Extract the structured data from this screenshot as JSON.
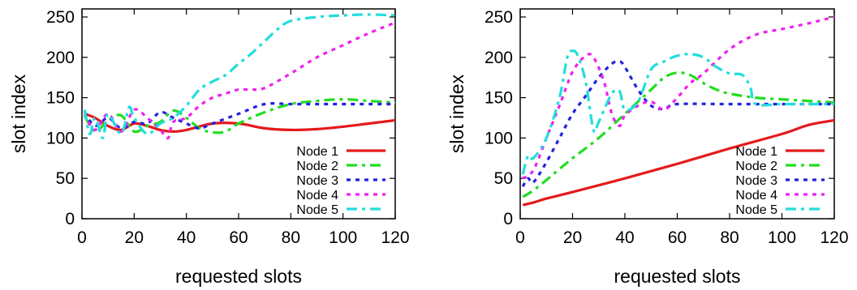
{
  "chart_data": [
    {
      "type": "line",
      "xlabel": "requested slots",
      "ylabel": "slot index",
      "xlim": [
        0,
        120
      ],
      "ylim": [
        0,
        260
      ],
      "xticks": [
        0,
        20,
        40,
        60,
        80,
        100,
        120
      ],
      "yticks": [
        0,
        50,
        100,
        150,
        200,
        250
      ],
      "grid": false,
      "legend_position": "bottom-right",
      "series": [
        {
          "name": "Node 1",
          "color": "#e41a1c",
          "dash": "solid",
          "x": [
            1,
            5,
            10,
            15,
            20,
            25,
            30,
            35,
            40,
            50,
            60,
            70,
            80,
            90,
            100,
            110,
            120
          ],
          "y": [
            130,
            125,
            115,
            110,
            118,
            115,
            110,
            108,
            110,
            118,
            118,
            112,
            110,
            111,
            114,
            118,
            122
          ]
        },
        {
          "name": "Node 2",
          "color": "#22dd22",
          "dash": "dashdot",
          "x": [
            1,
            5,
            10,
            15,
            20,
            25,
            30,
            35,
            40,
            45,
            50,
            55,
            60,
            70,
            80,
            90,
            100,
            110,
            120
          ],
          "y": [
            128,
            108,
            122,
            128,
            108,
            115,
            120,
            134,
            125,
            112,
            107,
            108,
            118,
            132,
            142,
            146,
            148,
            146,
            144
          ]
        },
        {
          "name": "Node 3",
          "color": "#2222dd",
          "dash": "dot",
          "x": [
            1,
            5,
            10,
            15,
            20,
            25,
            30,
            35,
            40,
            45,
            50,
            60,
            70,
            80,
            90,
            100,
            110,
            120
          ],
          "y": [
            132,
            115,
            125,
            112,
            120,
            118,
            132,
            125,
            118,
            112,
            118,
            130,
            142,
            142,
            142,
            142,
            142,
            142
          ]
        },
        {
          "name": "Node 4",
          "color": "#ee22ee",
          "dash": "dot",
          "x": [
            1,
            5,
            10,
            15,
            20,
            25,
            30,
            33,
            35,
            40,
            45,
            50,
            55,
            60,
            65,
            70,
            80,
            90,
            100,
            110,
            120
          ],
          "y": [
            130,
            110,
            130,
            108,
            135,
            125,
            110,
            100,
            120,
            125,
            140,
            150,
            155,
            160,
            160,
            162,
            180,
            200,
            215,
            230,
            243
          ]
        },
        {
          "name": "Node 5",
          "color": "#22dddd",
          "dash": "dashdot",
          "x": [
            1,
            3,
            5,
            8,
            10,
            15,
            18,
            20,
            25,
            30,
            35,
            40,
            45,
            50,
            55,
            60,
            65,
            70,
            75,
            80,
            90,
            100,
            110,
            120
          ],
          "y": [
            135,
            105,
            125,
            100,
            130,
            105,
            138,
            125,
            105,
            118,
            125,
            140,
            160,
            170,
            178,
            192,
            205,
            220,
            235,
            245,
            250,
            252,
            253,
            252
          ]
        }
      ]
    },
    {
      "type": "line",
      "xlabel": "requested slots",
      "ylabel": "slot index",
      "xlim": [
        0,
        120
      ],
      "ylim": [
        0,
        260
      ],
      "xticks": [
        0,
        20,
        40,
        60,
        80,
        100,
        120
      ],
      "yticks": [
        0,
        50,
        100,
        150,
        200,
        250
      ],
      "grid": false,
      "legend_position": "bottom-right",
      "series": [
        {
          "name": "Node 1",
          "color": "#e41a1c",
          "dash": "solid",
          "x": [
            1,
            5,
            10,
            20,
            40,
            60,
            80,
            100,
            110,
            120
          ],
          "y": [
            17,
            20,
            25,
            33,
            50,
            68,
            87,
            105,
            116,
            122
          ]
        },
        {
          "name": "Node 2",
          "color": "#22dd22",
          "dash": "dashdot",
          "x": [
            1,
            5,
            10,
            20,
            30,
            40,
            50,
            55,
            60,
            65,
            70,
            75,
            80,
            90,
            100,
            110,
            120
          ],
          "y": [
            27,
            35,
            48,
            75,
            100,
            130,
            160,
            175,
            181,
            178,
            168,
            160,
            155,
            150,
            148,
            146,
            144
          ]
        },
        {
          "name": "Node 3",
          "color": "#2222dd",
          "dash": "dot",
          "x": [
            1,
            3,
            5,
            10,
            15,
            20,
            25,
            30,
            35,
            38,
            40,
            45,
            50,
            55,
            60,
            80,
            100,
            120
          ],
          "y": [
            40,
            50,
            45,
            70,
            100,
            130,
            152,
            175,
            192,
            195,
            188,
            160,
            140,
            136,
            142,
            142,
            142,
            142
          ]
        },
        {
          "name": "Node 4",
          "color": "#ee22ee",
          "dash": "dot",
          "x": [
            1,
            5,
            10,
            15,
            20,
            25,
            28,
            32,
            35,
            38,
            40,
            45,
            50,
            55,
            60,
            65,
            70,
            80,
            90,
            100,
            110,
            120
          ],
          "y": [
            50,
            60,
            100,
            140,
            182,
            202,
            200,
            170,
            130,
            115,
            128,
            140,
            145,
            135,
            150,
            168,
            180,
            210,
            228,
            235,
            242,
            250
          ]
        },
        {
          "name": "Node 5",
          "color": "#22dddd",
          "dash": "dashdot",
          "x": [
            1,
            3,
            5,
            10,
            15,
            18,
            20,
            22,
            25,
            28,
            30,
            35,
            38,
            40,
            45,
            50,
            55,
            60,
            65,
            70,
            75,
            80,
            85,
            88,
            90,
            100,
            110,
            120
          ],
          "y": [
            55,
            78,
            75,
            100,
            150,
            200,
            208,
            202,
            170,
            110,
            120,
            155,
            158,
            135,
            145,
            185,
            195,
            202,
            204,
            200,
            188,
            180,
            178,
            162,
            142,
            142,
            142,
            142
          ]
        }
      ]
    }
  ]
}
